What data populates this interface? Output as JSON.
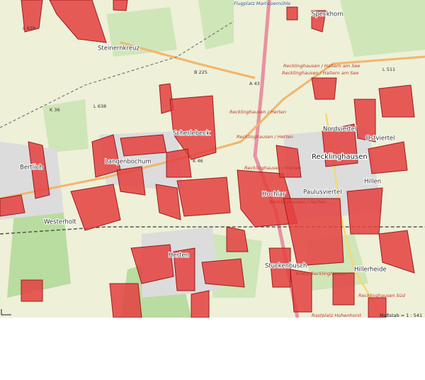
{
  "map": {
    "labels": [
      "Flugplatz Marl-Loemühle",
      "Speckhorn",
      "L 639",
      "Steinernkreuz",
      "B 225",
      "A 43",
      "Recklinghausen / Haltern am See",
      "Recklinghausen / Haltern am See",
      "L 511",
      "K 36",
      "L 638",
      "Scherlebeck",
      "Recklinghausen / Herten",
      "Recklinghausen / Herten",
      "Nordviertel",
      "Ostviertel",
      "Recklinghausen",
      "Langenbochum",
      "K 46",
      "Recklinghausen / Herten",
      "Hillen",
      "Bertlich",
      "Paulusviertel",
      "Hochlar",
      "Recklinghausen / Herten",
      "Westerholt",
      "Herten",
      "Stuckenbusch",
      "Kreuz Recklinghausen",
      "Hillerheide",
      "Recklinghausen Süd",
      "Rastplatz Hohenhorst"
    ],
    "scale": "Maßstab = 1 : 541"
  }
}
